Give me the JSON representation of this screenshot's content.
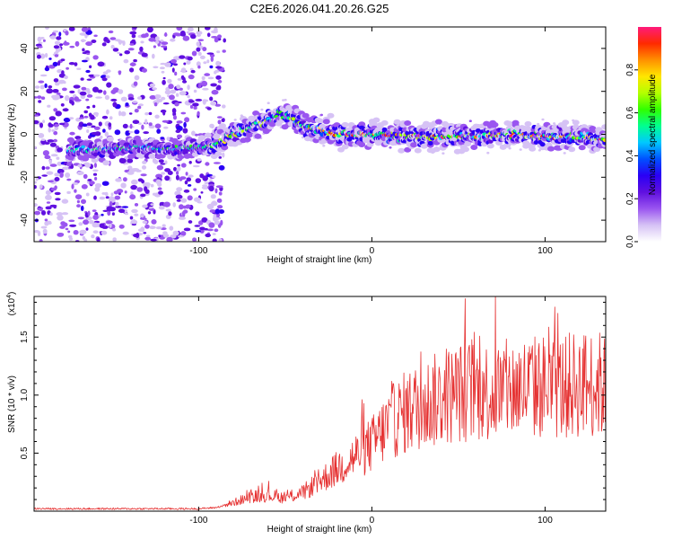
{
  "chart_data": [
    {
      "type": "heatmap",
      "title": "C2E6.2026.041.20.26.G25",
      "xlabel": "Height of straight line (km)",
      "ylabel": "Frequency (Hz)",
      "xlim": [
        -195,
        135
      ],
      "ylim": [
        -50,
        50
      ],
      "xticks": [
        -100,
        0,
        100
      ],
      "yticks": [
        -40,
        -20,
        0,
        20,
        40
      ],
      "colorbar": {
        "label": "Normalized spectral amplitude",
        "range": [
          0.0,
          1.0
        ],
        "ticks": [
          "0.0",
          "0.2",
          "0.4",
          "0.6",
          "0.8"
        ],
        "colors": [
          "#ffffff",
          "#d6c2f5",
          "#9a55f0",
          "#6010e0",
          "#2a00f5",
          "#0050ff",
          "#00c8ff",
          "#00ff90",
          "#30ff00",
          "#b4ff00",
          "#ffe600",
          "#ff9000",
          "#ff2a00",
          "#ff1a7a"
        ]
      },
      "ridge": {
        "x": [
          -170,
          -150,
          -135,
          -120,
          -100,
          -92,
          -85,
          -75,
          -65,
          -58,
          -52,
          -47,
          -40,
          -30,
          -20,
          -10,
          0,
          20,
          40,
          60,
          80,
          100,
          120,
          135
        ],
        "y": [
          -7,
          -7,
          -6,
          -7,
          -6,
          -6,
          -2,
          2,
          5,
          8,
          10,
          8,
          4,
          2,
          0,
          0,
          0,
          -1,
          -1,
          -1,
          0,
          -1,
          -1,
          -2
        ]
      }
    },
    {
      "type": "line",
      "xlabel": "Height of straight line (km)",
      "ylabel": "SNR (10 * v/v)",
      "y_multiplier": "(x10",
      "y_multiplier_exp": "4",
      "xlim": [
        -195,
        135
      ],
      "ylim": [
        0,
        1.85
      ],
      "xticks": [
        -100,
        0,
        100
      ],
      "yticks": [
        "0.5",
        "1.0",
        "1.5"
      ],
      "series": [
        {
          "name": "SNR",
          "color": "#e53030",
          "envelope_x": [
            -195,
            -100,
            -90,
            -80,
            -70,
            -60,
            -50,
            -40,
            -30,
            -20,
            -10,
            0,
            10,
            20,
            30,
            40,
            50,
            60,
            70,
            80,
            90,
            100,
            110,
            120,
            130,
            135
          ],
          "envelope_y": [
            0.02,
            0.02,
            0.03,
            0.07,
            0.12,
            0.13,
            0.11,
            0.15,
            0.25,
            0.35,
            0.45,
            0.55,
            0.72,
            0.82,
            0.88,
            0.93,
            0.98,
            1.0,
            0.98,
            1.0,
            1.02,
            1.03,
            1.02,
            1.05,
            1.05,
            1.02
          ]
        }
      ]
    }
  ]
}
